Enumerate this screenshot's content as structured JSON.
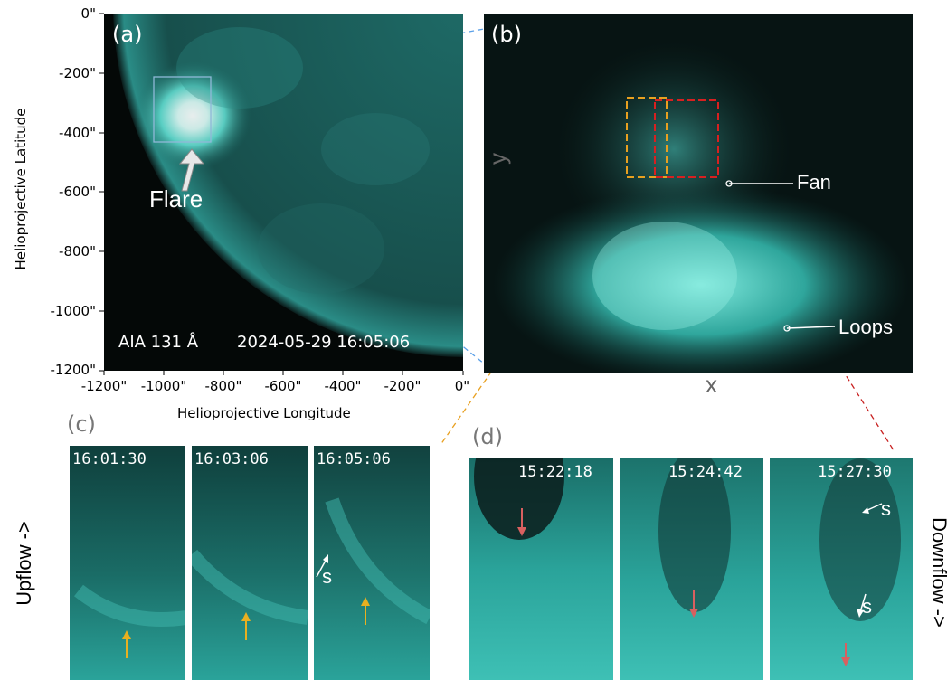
{
  "colors": {
    "aia_teal": "#2ec4b8",
    "dark_bg": "#07100f",
    "box_blue": "#5aa0e8",
    "box_orange": "#e8a020",
    "box_red": "#d82020",
    "arrow_orange": "#e8b020",
    "arrow_red": "#d86060"
  },
  "panel_a": {
    "label": "(a)",
    "flare_label": "Flare",
    "caption_instrument": "AIA 131 Å",
    "caption_time": "2024-05-29 16:05:06",
    "y_axis_title": "Helioprojective Latitude",
    "x_axis_title": "Helioprojective Longitude",
    "y_ticks": [
      "0\"",
      "-200\"",
      "-400\"",
      "-600\"",
      "-800\"",
      "-1000\"",
      "-1200\""
    ],
    "x_ticks": [
      "-1200\"",
      "-1000\"",
      "-800\"",
      "-600\"",
      "-400\"",
      "-200\"",
      "0\""
    ]
  },
  "panel_b": {
    "label": "(b)",
    "x_label": "x",
    "y_label": "y",
    "fan_label": "Fan",
    "loops_label": "Loops"
  },
  "panel_c": {
    "label": "(c)",
    "side_label": "Upflow ->",
    "frames": [
      {
        "time": "16:01:30"
      },
      {
        "time": "16:03:06"
      },
      {
        "time": "16:05:06",
        "s_label": "s"
      }
    ]
  },
  "panel_d": {
    "label": "(d)",
    "side_label": "Downflow ->",
    "frames": [
      {
        "time": "15:22:18"
      },
      {
        "time": "15:24:42"
      },
      {
        "time": "15:27:30",
        "s_label_top": "s",
        "s_label_mid": "s"
      }
    ]
  },
  "icons": [
    "white-arrow-icon",
    "orange-arrow-icon",
    "red-arrow-icon",
    "white-pointer-arrow-icon"
  ]
}
